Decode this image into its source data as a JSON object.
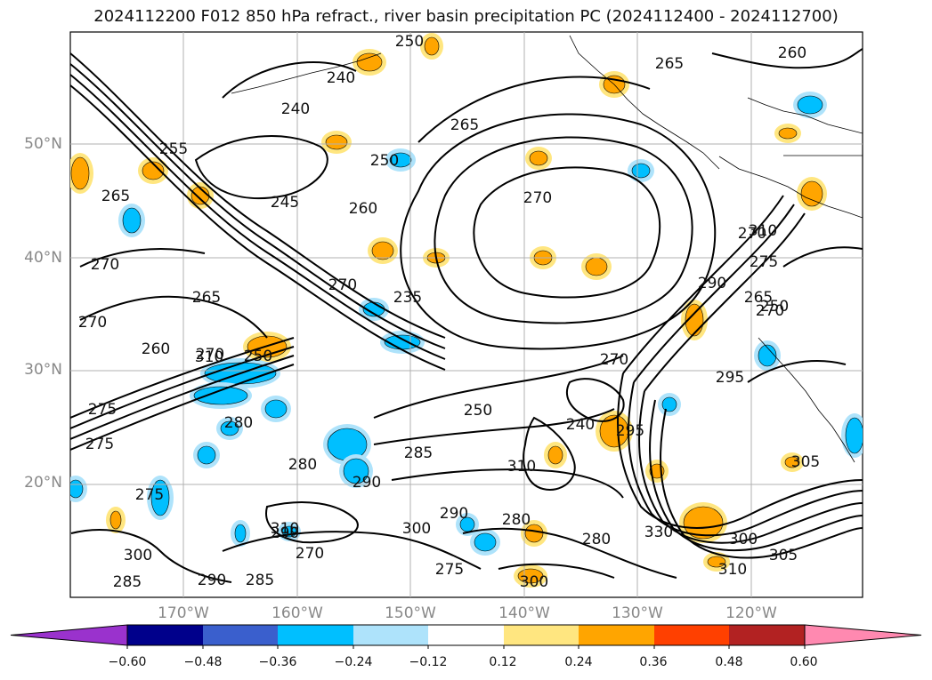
{
  "title": "2024112200 F012 850 hPa refract., river basin precipitation PC (2024112400 - 2024112700)",
  "axes": {
    "lat_labels": [
      "50°N",
      "40°N",
      "30°N",
      "20°N"
    ],
    "lon_labels": [
      "170°W",
      "160°W",
      "150°W",
      "140°W",
      "130°W",
      "120°W"
    ]
  },
  "contour_labels": [
    "250",
    "240",
    "240",
    "255",
    "265",
    "265",
    "260",
    "265",
    "250",
    "245",
    "260",
    "270",
    "270",
    "270",
    "265",
    "270",
    "270",
    "260",
    "270",
    "275",
    "265",
    "250",
    "250",
    "290",
    "270",
    "280",
    "250",
    "240",
    "285",
    "275",
    "275",
    "275",
    "300",
    "290",
    "280",
    "290",
    "310",
    "280",
    "300",
    "290",
    "295",
    "295",
    "270",
    "280",
    "330",
    "275",
    "300",
    "285",
    "290",
    "285",
    "310",
    "305",
    "305",
    "310",
    "310",
    "310",
    "235",
    "270",
    "300"
  ],
  "colorbar": {
    "ticks": [
      "−0.60",
      "−0.48",
      "−0.36",
      "−0.24",
      "−0.12",
      "0.12",
      "0.24",
      "0.36",
      "0.48",
      "0.60"
    ],
    "colors": [
      "#9a32cd",
      "#00008b",
      "#3a5fcd",
      "#00bfff",
      "#aee3fb",
      "#ffffff",
      "#ffe680",
      "#ffa500",
      "#ff4000",
      "#b22222",
      "#ff89b0"
    ]
  }
}
